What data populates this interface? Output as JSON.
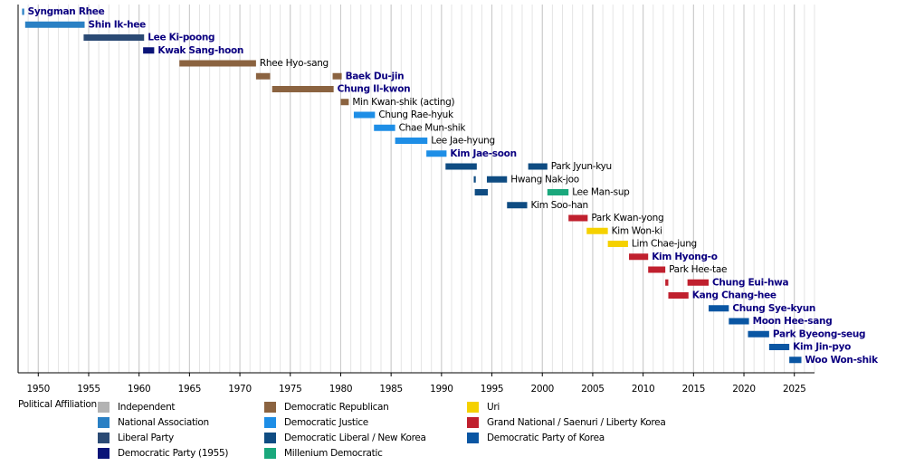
{
  "chart_data": {
    "type": "timeline",
    "xlim": [
      1948,
      2027
    ],
    "xticks": [
      1950,
      1955,
      1960,
      1965,
      1970,
      1975,
      1980,
      1985,
      1990,
      1995,
      2000,
      2005,
      2010,
      2015,
      2020,
      2025
    ],
    "grid": true,
    "legend_title": "Political Affiliation:",
    "parties": [
      {
        "name": "Independent",
        "color": "#b3b3b3"
      },
      {
        "name": "National Association",
        "color": "#2a80c4"
      },
      {
        "name": "Liberal Party",
        "color": "#2b4a74"
      },
      {
        "name": "Democratic Party (1955)",
        "color": "#0a1478"
      },
      {
        "name": "Democratic Republican",
        "color": "#8b6340"
      },
      {
        "name": "Democratic Justice",
        "color": "#1e8ee6"
      },
      {
        "name": "Democratic Liberal / New Korea",
        "color": "#0f4c82"
      },
      {
        "name": "Millenium Democratic",
        "color": "#1aa87c"
      },
      {
        "name": "Uri",
        "color": "#f5d100"
      },
      {
        "name": "Grand National / Saenuri / Liberty Korea",
        "color": "#c0202e"
      },
      {
        "name": "Democratic Party of Korea",
        "color": "#0a56a3"
      }
    ],
    "rows": [
      {
        "name": "Syngman Rhee",
        "linked": true,
        "terms": [
          {
            "start": 1948.4,
            "end": 1948.6,
            "party": "National Association"
          }
        ]
      },
      {
        "name": "Shin Ik-hee",
        "linked": true,
        "terms": [
          {
            "start": 1948.7,
            "end": 1954.6,
            "party": "National Association"
          }
        ]
      },
      {
        "name": "Lee Ki-poong",
        "linked": true,
        "terms": [
          {
            "start": 1954.5,
            "end": 1960.5,
            "party": "Liberal Party"
          }
        ]
      },
      {
        "name": "Kwak Sang-hoon",
        "linked": true,
        "terms": [
          {
            "start": 1960.4,
            "end": 1961.5,
            "party": "Democratic Party (1955)"
          }
        ]
      },
      {
        "name": "Rhee Hyo-sang",
        "linked": false,
        "terms": [
          {
            "start": 1964.0,
            "end": 1971.6,
            "party": "Democratic Republican"
          }
        ]
      },
      {
        "name": "Baek Du-jin",
        "linked": true,
        "terms": [
          {
            "start": 1971.6,
            "end": 1973.0,
            "party": "Democratic Republican"
          },
          {
            "start": 1979.2,
            "end": 1980.1,
            "party": "Democratic Republican"
          }
        ]
      },
      {
        "name": "Chung Il-kwon",
        "linked": true,
        "terms": [
          {
            "start": 1973.2,
            "end": 1979.3,
            "party": "Democratic Republican"
          }
        ]
      },
      {
        "name": "Min Kwan-shik (acting)",
        "linked": false,
        "terms": [
          {
            "start": 1980.0,
            "end": 1980.8,
            "party": "Democratic Republican"
          }
        ]
      },
      {
        "name": "Chung Rae-hyuk",
        "linked": false,
        "terms": [
          {
            "start": 1981.3,
            "end": 1983.4,
            "party": "Democratic Justice"
          }
        ]
      },
      {
        "name": "Chae Mun-shik",
        "linked": false,
        "terms": [
          {
            "start": 1983.3,
            "end": 1985.4,
            "party": "Democratic Justice"
          }
        ]
      },
      {
        "name": "Lee Jae-hyung",
        "linked": false,
        "terms": [
          {
            "start": 1985.4,
            "end": 1988.6,
            "party": "Democratic Justice"
          }
        ]
      },
      {
        "name": "Kim Jae-soon",
        "linked": true,
        "terms": [
          {
            "start": 1988.5,
            "end": 1990.5,
            "party": "Democratic Justice"
          }
        ]
      },
      {
        "name": "Park Jyun-kyu",
        "linked": false,
        "terms": [
          {
            "start": 1990.4,
            "end": 1993.5,
            "party": "Democratic Liberal / New Korea"
          },
          {
            "start": 1998.6,
            "end": 2000.5,
            "party": "Democratic Liberal / New Korea"
          }
        ]
      },
      {
        "name": "Hwang Nak-joo",
        "linked": false,
        "terms": [
          {
            "start": 1993.2,
            "end": 1993.4,
            "party": "Democratic Liberal / New Korea"
          },
          {
            "start": 1994.5,
            "end": 1996.5,
            "party": "Democratic Liberal / New Korea"
          }
        ]
      },
      {
        "name": "Lee Man-sup",
        "linked": false,
        "terms": [
          {
            "start": 1993.3,
            "end": 1994.6,
            "party": "Democratic Liberal / New Korea"
          },
          {
            "start": 2000.5,
            "end": 2002.6,
            "party": "Millenium Democratic"
          }
        ]
      },
      {
        "name": "Kim Soo-han",
        "linked": false,
        "terms": [
          {
            "start": 1996.5,
            "end": 1998.5,
            "party": "Democratic Liberal / New Korea"
          }
        ]
      },
      {
        "name": "Park Kwan-yong",
        "linked": false,
        "terms": [
          {
            "start": 2002.6,
            "end": 2004.5,
            "party": "Grand National / Saenuri / Liberty Korea"
          }
        ]
      },
      {
        "name": "Kim Won-ki",
        "linked": false,
        "terms": [
          {
            "start": 2004.4,
            "end": 2006.5,
            "party": "Uri"
          }
        ]
      },
      {
        "name": "Lim Chae-jung",
        "linked": false,
        "terms": [
          {
            "start": 2006.5,
            "end": 2008.5,
            "party": "Uri"
          }
        ]
      },
      {
        "name": "Kim Hyong-o",
        "linked": true,
        "terms": [
          {
            "start": 2008.6,
            "end": 2010.5,
            "party": "Grand National / Saenuri / Liberty Korea"
          }
        ]
      },
      {
        "name": "Park Hee-tae",
        "linked": false,
        "terms": [
          {
            "start": 2010.5,
            "end": 2012.2,
            "party": "Grand National / Saenuri / Liberty Korea"
          }
        ]
      },
      {
        "name": "Chung Eui-hwa",
        "linked": true,
        "terms": [
          {
            "start": 2012.2,
            "end": 2012.5,
            "party": "Grand National / Saenuri / Liberty Korea"
          },
          {
            "start": 2014.4,
            "end": 2016.5,
            "party": "Grand National / Saenuri / Liberty Korea"
          }
        ]
      },
      {
        "name": "Kang Chang-hee",
        "linked": true,
        "terms": [
          {
            "start": 2012.5,
            "end": 2014.5,
            "party": "Grand National / Saenuri / Liberty Korea"
          }
        ]
      },
      {
        "name": "Chung Sye-kyun",
        "linked": true,
        "terms": [
          {
            "start": 2016.5,
            "end": 2018.5,
            "party": "Democratic Party of Korea"
          }
        ]
      },
      {
        "name": "Moon Hee-sang",
        "linked": true,
        "terms": [
          {
            "start": 2018.5,
            "end": 2020.5,
            "party": "Democratic Party of Korea"
          }
        ]
      },
      {
        "name": "Park Byeong-seug",
        "linked": true,
        "terms": [
          {
            "start": 2020.4,
            "end": 2022.5,
            "party": "Democratic Party of Korea"
          }
        ]
      },
      {
        "name": "Kim Jin-pyo",
        "linked": true,
        "terms": [
          {
            "start": 2022.5,
            "end": 2024.5,
            "party": "Democratic Party of Korea"
          }
        ]
      },
      {
        "name": "Woo Won-shik",
        "linked": true,
        "terms": [
          {
            "start": 2024.5,
            "end": 2025.7,
            "party": "Democratic Party of Korea"
          }
        ]
      }
    ]
  }
}
